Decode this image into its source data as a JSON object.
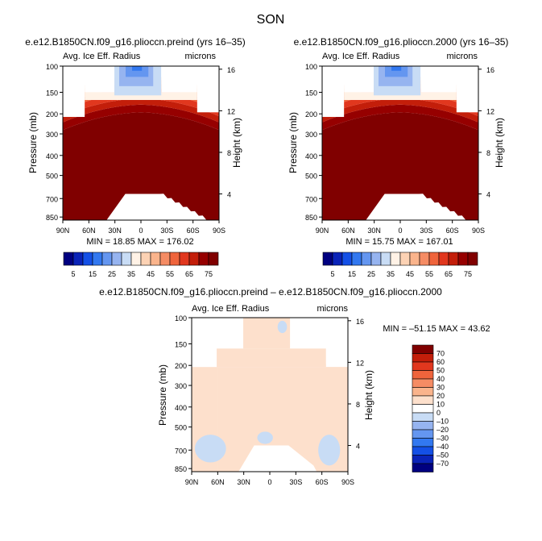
{
  "title": "SON",
  "chart_data": [
    {
      "type": "heatmap",
      "title": "e.e12.B1850CN.f09_g16.plioccn.preind (yrs 16–35)",
      "subtitle_left": "Avg. Ice Eff. Radius",
      "subtitle_right": "microns",
      "ylabel": "Pressure (mb)",
      "ylabel_right": "Height (km)",
      "x_ticks": [
        "90N",
        "60N",
        "30N",
        "0",
        "30S",
        "60S",
        "90S"
      ],
      "y_ticks": [
        "100",
        "150",
        "200",
        "300",
        "400",
        "500",
        "700",
        "850"
      ],
      "y_ticks_right": [
        "16",
        "12",
        "8",
        "4"
      ],
      "stats": "MIN =  18.85   MAX = 176.02",
      "min": 18.85,
      "max": 176.02,
      "colorbar_labels": [
        "5",
        "15",
        "25",
        "35",
        "45",
        "55",
        "65",
        "75"
      ]
    },
    {
      "type": "heatmap",
      "title": "e.e12.B1850CN.f09_g16.plioccn.2000 (yrs 16–35)",
      "subtitle_left": "Avg. Ice Eff. Radius",
      "subtitle_right": "microns",
      "ylabel": "Pressure (mb)",
      "ylabel_right": "Height (km)",
      "x_ticks": [
        "90N",
        "60N",
        "30N",
        "0",
        "30S",
        "60S",
        "90S"
      ],
      "y_ticks": [
        "100",
        "150",
        "200",
        "300",
        "400",
        "500",
        "700",
        "850"
      ],
      "y_ticks_right": [
        "16",
        "12",
        "8",
        "4"
      ],
      "stats": "MIN =  15.75   MAX = 167.01",
      "min": 15.75,
      "max": 167.01,
      "colorbar_labels": [
        "5",
        "15",
        "25",
        "35",
        "45",
        "55",
        "65",
        "75"
      ]
    },
    {
      "type": "heatmap",
      "title": "e.e12.B1850CN.f09_g16.plioccn.preind – e.e12.B1850CN.f09_g16.plioccn.2000",
      "subtitle_left": "Avg. Ice Eff. Radius",
      "subtitle_right": "microns",
      "ylabel": "Pressure (mb)",
      "ylabel_right": "Height (km)",
      "x_ticks": [
        "90N",
        "60N",
        "30N",
        "0",
        "30S",
        "60S",
        "90S"
      ],
      "y_ticks": [
        "100",
        "150",
        "200",
        "300",
        "400",
        "500",
        "700",
        "850"
      ],
      "y_ticks_right": [
        "16",
        "12",
        "8",
        "4"
      ],
      "stats": "MIN = –51.15   MAX =  43.62",
      "min": -51.15,
      "max": 43.62,
      "colorbar_labels": [
        "70",
        "60",
        "50",
        "40",
        "30",
        "20",
        "10",
        "0",
        "–10",
        "–20",
        "–30",
        "–40",
        "–50",
        "–70"
      ]
    }
  ],
  "colors": {
    "seq_scale": [
      "#000080",
      "#0a23b8",
      "#1450e6",
      "#3278f0",
      "#6496f0",
      "#96b4f0",
      "#c8dcf5",
      "#fff2e6",
      "#fcd2b4",
      "#fab48c",
      "#f58c64",
      "#ef643c",
      "#e1371e",
      "#c31e0a",
      "#960000",
      "#800000"
    ],
    "diff_scale": [
      "#800000",
      "#c31e0a",
      "#e1371e",
      "#ef643c",
      "#f58c64",
      "#fab48c",
      "#fde0cc",
      "#ffffff",
      "#c8dcf5",
      "#96b4f0",
      "#6496f0",
      "#3278f0",
      "#1450e6",
      "#0a23b8",
      "#000080"
    ]
  }
}
